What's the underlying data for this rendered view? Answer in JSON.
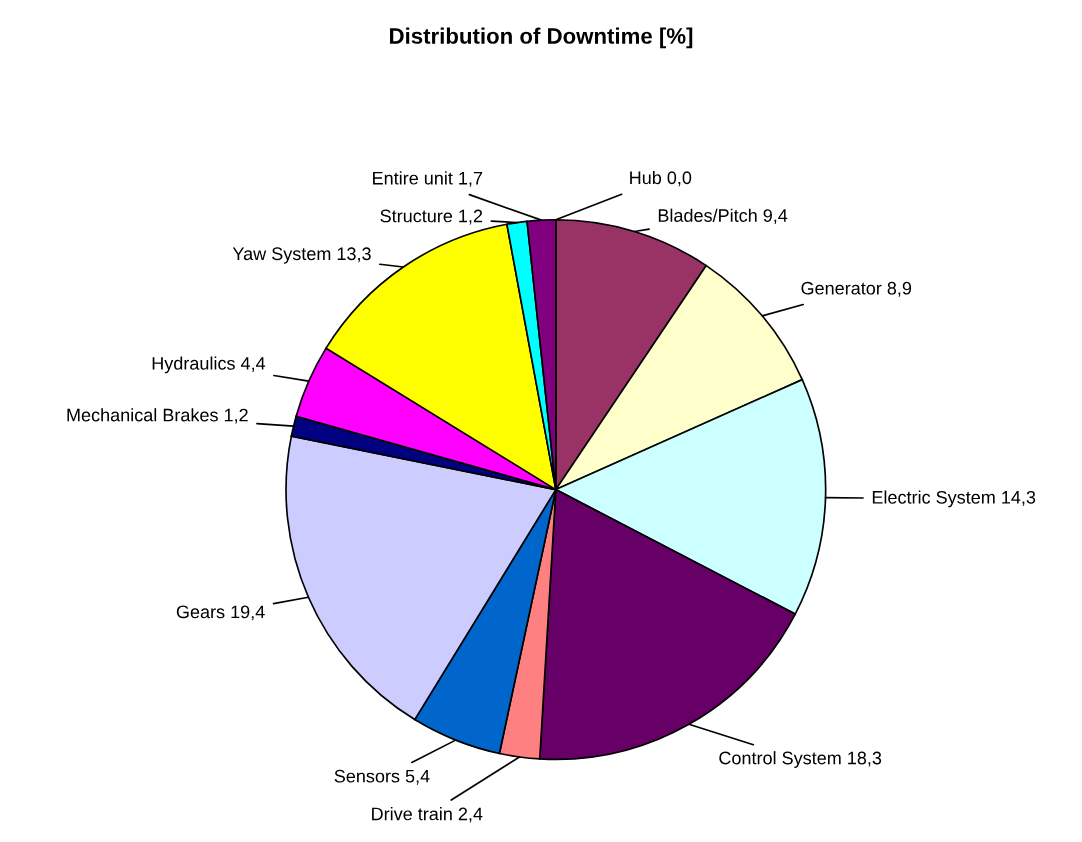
{
  "chart_data": {
    "type": "pie",
    "title": "Distribution of Downtime [%]",
    "categories": [
      "Hub",
      "Blades/Pitch",
      "Generator",
      "Electric System",
      "Control System",
      "Drive train",
      "Sensors",
      "Gears",
      "Mechanical Brakes",
      "Hydraulics",
      "Yaw System",
      "Structure",
      "Entire unit"
    ],
    "values": [
      0.0,
      9.4,
      8.9,
      14.3,
      18.3,
      2.4,
      5.4,
      19.4,
      1.2,
      4.4,
      13.3,
      1.2,
      1.7
    ],
    "value_labels": [
      "0,0",
      "9,4",
      "8,9",
      "14,3",
      "18,3",
      "2,4",
      "5,4",
      "19,4",
      "1,2",
      "4,4",
      "13,3",
      "1,2",
      "1,7"
    ],
    "colors": [
      "#800000",
      "#993366",
      "#ffffcc",
      "#ccffff",
      "#660066",
      "#ff8080",
      "#0066cc",
      "#ccccff",
      "#000080",
      "#ff00ff",
      "#ffff00",
      "#00ffff",
      "#800080"
    ]
  }
}
